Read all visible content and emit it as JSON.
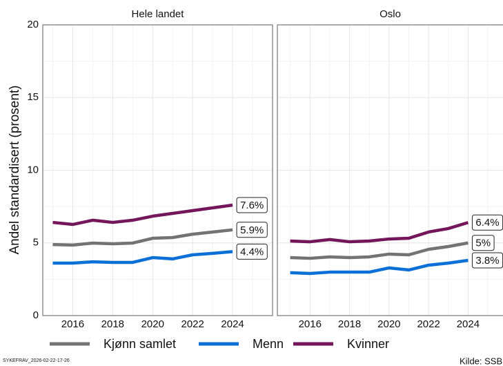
{
  "y_label": "Andel standardisert (prosent)",
  "footer_left": "SYKEFRAV_2026-02-22-17-26",
  "footer_right": "Kilde: SSB",
  "chart_data": [
    {
      "type": "line",
      "title": "Hele landet",
      "x": [
        2015,
        2016,
        2017,
        2018,
        2019,
        2020,
        2021,
        2022,
        2023,
        2024
      ],
      "xlim": [
        2014.5,
        2026
      ],
      "xticks": [
        2016,
        2018,
        2020,
        2022,
        2024
      ],
      "ylim": [
        0,
        20
      ],
      "yticks": [
        0,
        5,
        10,
        15,
        20
      ],
      "grid": true,
      "series": [
        {
          "name": "Kjønn samlet",
          "color": "#737373",
          "values": [
            4.89,
            4.85,
            4.99,
            4.94,
            4.99,
            5.32,
            5.37,
            5.6,
            5.75,
            5.9
          ],
          "value_labels": [
            null,
            null,
            null,
            null,
            null,
            null,
            null,
            null,
            null,
            "5.9%"
          ]
        },
        {
          "name": "Menn",
          "color": "#0b6fd8",
          "values": [
            3.61,
            3.61,
            3.7,
            3.66,
            3.66,
            3.99,
            3.9,
            4.18,
            4.28,
            4.4
          ],
          "value_labels": [
            null,
            null,
            null,
            null,
            null,
            null,
            null,
            null,
            null,
            "4.4%"
          ]
        },
        {
          "name": "Kvinner",
          "color": "#74165c",
          "values": [
            6.41,
            6.27,
            6.56,
            6.41,
            6.56,
            6.84,
            7.03,
            7.22,
            7.41,
            7.6
          ],
          "value_labels": [
            null,
            null,
            null,
            null,
            null,
            null,
            null,
            null,
            null,
            "7.6%"
          ]
        }
      ]
    },
    {
      "type": "line",
      "title": "Oslo",
      "x": [
        2015,
        2016,
        2017,
        2018,
        2019,
        2020,
        2021,
        2022,
        2023,
        2024
      ],
      "xlim": [
        2014.35,
        2026.15
      ],
      "xticks": [
        2016,
        2018,
        2020,
        2022,
        2024
      ],
      "ylim": [
        0,
        20
      ],
      "yticks": [
        0,
        5,
        10,
        15,
        20
      ],
      "grid": true,
      "series": [
        {
          "name": "Kjønn samlet",
          "color": "#737373",
          "values": [
            3.99,
            3.94,
            4.04,
            3.99,
            4.04,
            4.23,
            4.18,
            4.56,
            4.75,
            5.0
          ],
          "value_labels": [
            null,
            null,
            null,
            null,
            null,
            null,
            null,
            null,
            null,
            "5%"
          ]
        },
        {
          "name": "Menn",
          "color": "#0b6fd8",
          "values": [
            2.95,
            2.9,
            2.99,
            2.99,
            2.99,
            3.28,
            3.14,
            3.47,
            3.61,
            3.8
          ],
          "value_labels": [
            null,
            null,
            null,
            null,
            null,
            null,
            null,
            null,
            null,
            "3.8%"
          ]
        },
        {
          "name": "Kvinner",
          "color": "#74165c",
          "values": [
            5.13,
            5.08,
            5.23,
            5.08,
            5.13,
            5.27,
            5.32,
            5.75,
            5.99,
            6.4
          ],
          "value_labels": [
            null,
            null,
            null,
            null,
            null,
            null,
            null,
            null,
            null,
            "6.4%"
          ]
        }
      ]
    }
  ]
}
